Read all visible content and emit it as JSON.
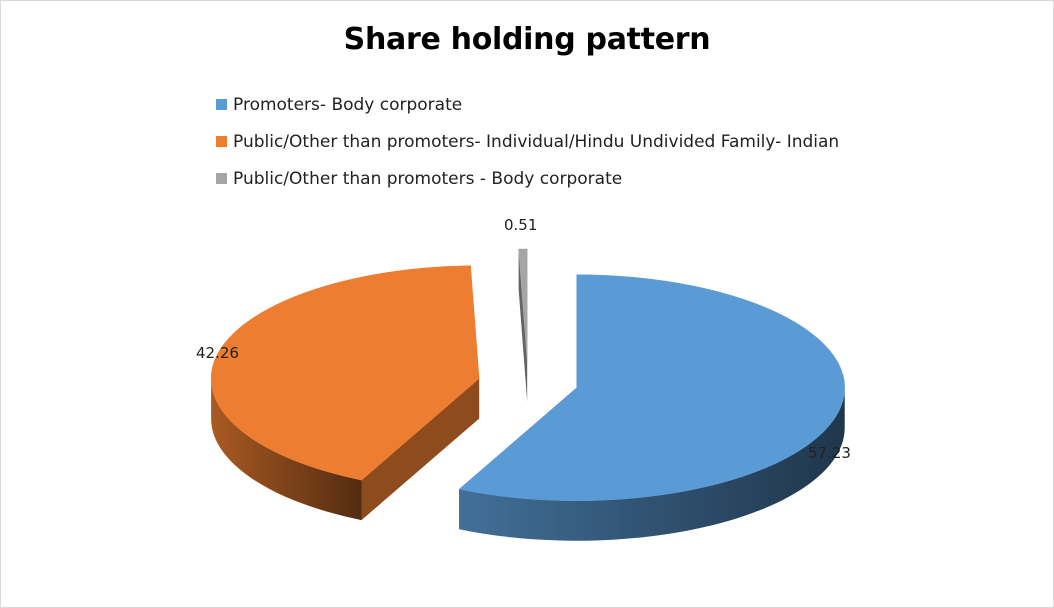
{
  "chart_data": {
    "type": "pie",
    "title": "Share holding pattern",
    "legend_position": "top-left",
    "series": [
      {
        "name": "Promoters- Body corporate",
        "value": 57.23,
        "label": "57.23",
        "color": "#5B9BD5"
      },
      {
        "name": "Public/Other than promoters- Individual/Hindu Undivided Family- Indian",
        "value": 42.26,
        "label": "42.26",
        "color": "#ED7D31"
      },
      {
        "name": "Public/Other than promoters - Body corporate",
        "value": 0.51,
        "label": "0.51",
        "color": "#A5A5A5"
      }
    ]
  }
}
